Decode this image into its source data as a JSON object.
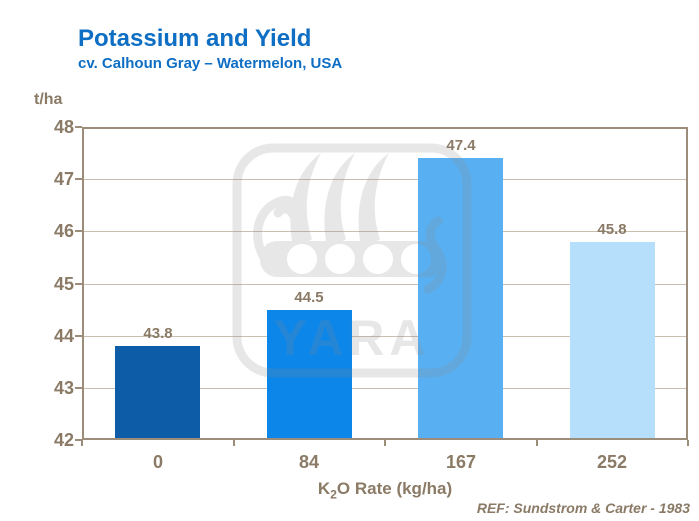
{
  "header": {
    "title": "Potassium and Yield",
    "subtitle": "cv. Calhoun Gray – Watermelon, USA"
  },
  "chart_data": {
    "type": "bar",
    "categories": [
      "0",
      "84",
      "167",
      "252"
    ],
    "values": [
      43.8,
      44.5,
      47.4,
      45.8
    ],
    "value_labels": [
      "43.8",
      "44.5",
      "47.4",
      "45.8"
    ],
    "title": "Potassium and Yield",
    "subtitle": "cv. Calhoun Gray – Watermelon, USA",
    "xlabel": "K₂O Rate (kg/ha)",
    "xlabel_parts": {
      "pre": "K",
      "sub": "2",
      "post": "O Rate (kg/ha)"
    },
    "ylabel": "t/ha",
    "ylim": [
      42,
      48
    ],
    "ytick_step": 1,
    "grid": "horizontal",
    "legend": "none",
    "bar_colors": [
      "#0d5ca7",
      "#0c86e9",
      "#58b0f2",
      "#b6dffb"
    ]
  },
  "footer": {
    "reference": "REF: Sundstrom & Carter - 1983"
  },
  "watermark": {
    "name": "yara-logo",
    "text": "YARA",
    "color": "#8a8a8a"
  },
  "colors": {
    "title_blue": "#0d6ec4",
    "axis_brown": "#8a7a66",
    "box_line": "#9c8d7a",
    "grid_line": "#c9beb0"
  }
}
